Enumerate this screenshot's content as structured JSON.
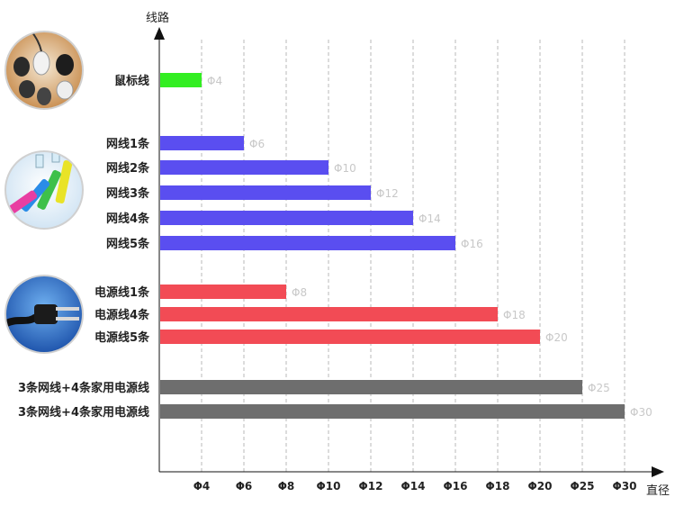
{
  "chart_data": {
    "type": "bar",
    "orientation": "horizontal",
    "title": "",
    "xlabel": "直径",
    "ylabel": "线路",
    "x_ticks": [
      "Φ4",
      "Φ6",
      "Φ8",
      "Φ10",
      "Φ12",
      "Φ14",
      "Φ16",
      "Φ18",
      "Φ20",
      "Φ25",
      "Φ30"
    ],
    "grid": "vertical dashed",
    "groups": [
      {
        "icon": "mouse-photo-icon",
        "color": "#33ee22",
        "bars": [
          {
            "label": "鼠标线",
            "value": "Φ4"
          }
        ]
      },
      {
        "icon": "network-cable-photo-icon",
        "color": "#5a4ef0",
        "bars": [
          {
            "label": "网线1条",
            "value": "Φ6"
          },
          {
            "label": "网线2条",
            "value": "Φ10"
          },
          {
            "label": "网线3条",
            "value": "Φ12"
          },
          {
            "label": "网线4条",
            "value": "Φ14"
          },
          {
            "label": "网线5条",
            "value": "Φ16"
          }
        ]
      },
      {
        "icon": "power-plug-photo-icon",
        "color": "#f24b55",
        "bars": [
          {
            "label": "电源线1条",
            "value": "Φ8"
          },
          {
            "label": "电源线4条",
            "value": "Φ18"
          },
          {
            "label": "电源线5条",
            "value": "Φ20"
          }
        ]
      },
      {
        "icon": "",
        "color": "#6e6e6e",
        "bars": [
          {
            "label": "3条网线+4条家用电源线",
            "value": "Φ25"
          },
          {
            "label": "3条网线+4条家用电源线",
            "value": "Φ30"
          }
        ]
      }
    ]
  }
}
